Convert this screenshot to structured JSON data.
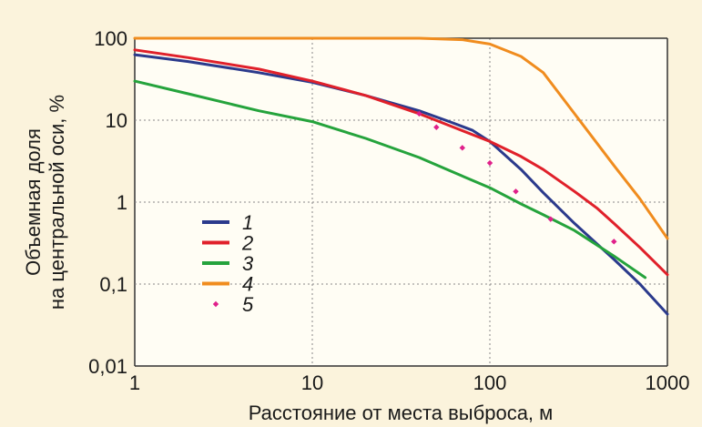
{
  "chart_data": {
    "type": "line",
    "xlabel": "Расстояние от места выброса, м",
    "ylabel": [
      "Объемная доля",
      "на центральной оси, %"
    ],
    "x_scale": "log",
    "y_scale": "log",
    "xlim": [
      1,
      1000
    ],
    "ylim": [
      0.01,
      100
    ],
    "x_ticks": [
      {
        "value": 1,
        "label": "1"
      },
      {
        "value": 10,
        "label": "10"
      },
      {
        "value": 100,
        "label": "100"
      },
      {
        "value": 1000,
        "label": "1000"
      }
    ],
    "y_ticks": [
      {
        "value": 0.01,
        "label": "0,01"
      },
      {
        "value": 0.1,
        "label": "0,1"
      },
      {
        "value": 1,
        "label": "1"
      },
      {
        "value": 10,
        "label": "10"
      },
      {
        "value": 100,
        "label": "100"
      }
    ],
    "grid": "dotted",
    "legend_position": "lower-left inside plot",
    "series": [
      {
        "name": "1",
        "style": "line",
        "color": "#2b3a8c",
        "x": [
          1,
          2,
          5,
          10,
          20,
          40,
          60,
          80,
          100,
          150,
          200,
          300,
          500,
          700,
          1000
        ],
        "y": [
          63,
          52,
          38,
          29,
          20,
          13,
          9.5,
          7.5,
          5.5,
          2.5,
          1.3,
          0.55,
          0.2,
          0.1,
          0.043
        ]
      },
      {
        "name": "2",
        "style": "line",
        "color": "#e0202a",
        "x": [
          1,
          2,
          5,
          10,
          20,
          40,
          60,
          100,
          150,
          200,
          300,
          400,
          500,
          700,
          1000
        ],
        "y": [
          72,
          58,
          42,
          30,
          20,
          12,
          8.5,
          5.5,
          3.6,
          2.5,
          1.35,
          0.85,
          0.55,
          0.28,
          0.13
        ]
      },
      {
        "name": "3",
        "style": "line",
        "color": "#25a33c",
        "x": [
          1,
          2,
          5,
          10,
          20,
          40,
          60,
          100,
          150,
          200,
          300,
          500,
          750
        ],
        "y": [
          30,
          21,
          13,
          9.6,
          6,
          3.5,
          2.4,
          1.5,
          0.95,
          0.7,
          0.45,
          0.22,
          0.12
        ]
      },
      {
        "name": "4",
        "style": "line",
        "color": "#f08c1e",
        "x": [
          1,
          10,
          40,
          70,
          100,
          150,
          200,
          300,
          500,
          700,
          1000
        ],
        "y": [
          100,
          100,
          100,
          96,
          85,
          60,
          38,
          12,
          2.8,
          1.1,
          0.36
        ]
      },
      {
        "name": "5",
        "style": "points",
        "color": "#e0208a",
        "x": [
          40,
          50,
          70,
          100,
          140,
          220,
          500
        ],
        "y": [
          12,
          8.2,
          4.6,
          3.0,
          1.35,
          0.62,
          0.33
        ]
      }
    ]
  }
}
